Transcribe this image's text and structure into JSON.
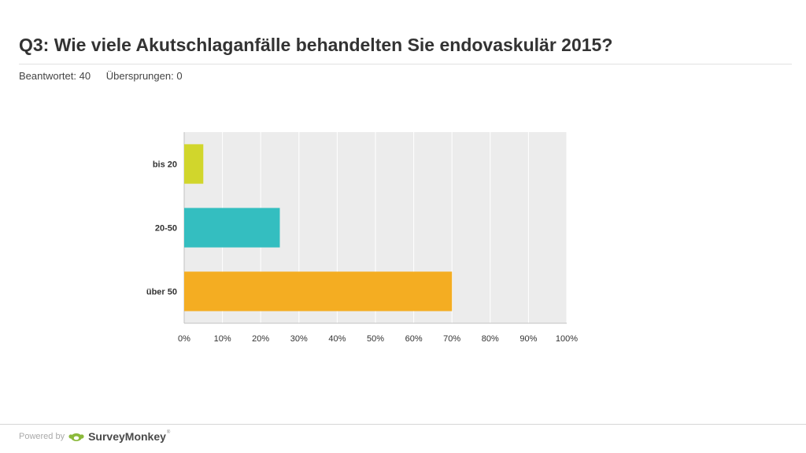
{
  "header": {
    "title": "Q3: Wie viele Akutschlaganfälle behandelten Sie endovaskulär 2015?",
    "answered_label": "Beantwortet:",
    "answered_value": "40",
    "skipped_label": "Übersprungen:",
    "skipped_value": "0"
  },
  "chart_data": {
    "type": "bar",
    "orientation": "horizontal",
    "categories": [
      "bis 20",
      "20-50",
      "über 50"
    ],
    "values": [
      5,
      25,
      70
    ],
    "colors": [
      "#d1d62c",
      "#34bec0",
      "#f4ad22"
    ],
    "xlim": [
      0,
      100
    ],
    "xticks": [
      "0%",
      "10%",
      "20%",
      "30%",
      "40%",
      "50%",
      "60%",
      "70%",
      "80%",
      "90%",
      "100%"
    ],
    "grid": true,
    "plot_background": "#ececec"
  },
  "footer": {
    "powered_by": "Powered by",
    "brand": "SurveyMonkey",
    "trademark": "®"
  }
}
